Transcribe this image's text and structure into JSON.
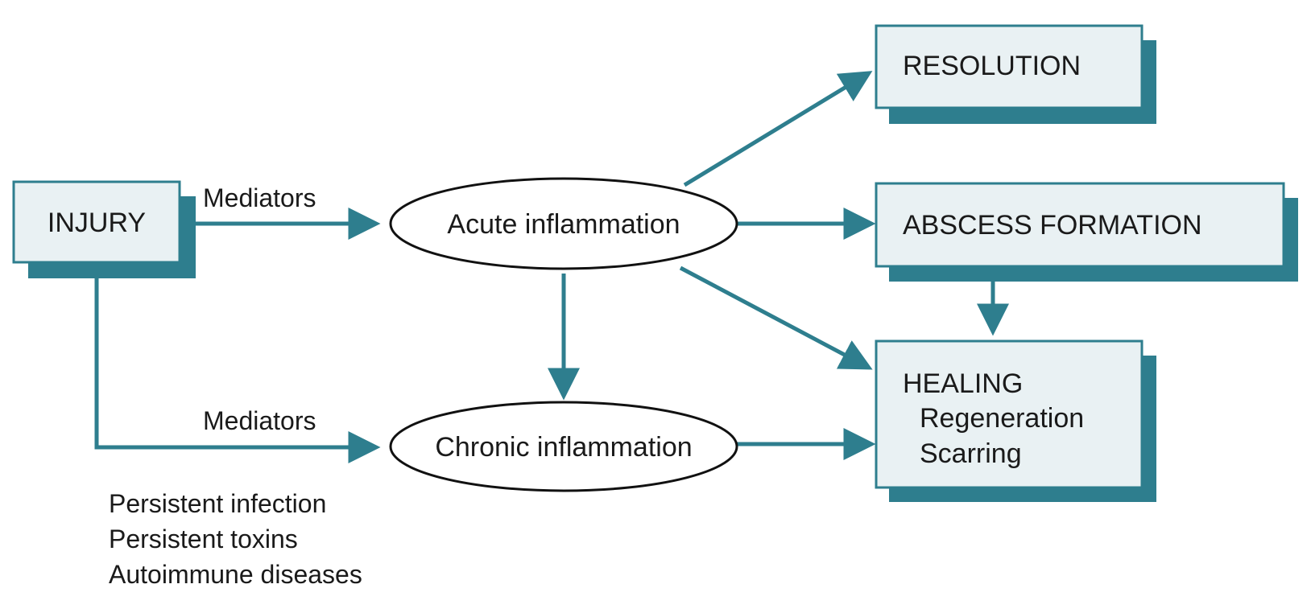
{
  "colors": {
    "accent": "#2e7e8e",
    "box_fill": "#e9f1f3",
    "ellipse_stroke": "#111111",
    "text": "#1a1a1a"
  },
  "nodes": {
    "injury": "INJURY",
    "acute": "Acute inflammation",
    "chronic": "Chronic inflammation",
    "resolution": "RESOLUTION",
    "abscess": "ABSCESS FORMATION",
    "healing": {
      "title": "HEALING",
      "items": [
        "Regeneration",
        "Scarring"
      ]
    }
  },
  "edge_labels": {
    "injury_to_acute": "Mediators",
    "injury_to_chronic": "Mediators"
  },
  "chronic_causes": [
    "Persistent infection",
    "Persistent toxins",
    "Autoimmune diseases"
  ]
}
